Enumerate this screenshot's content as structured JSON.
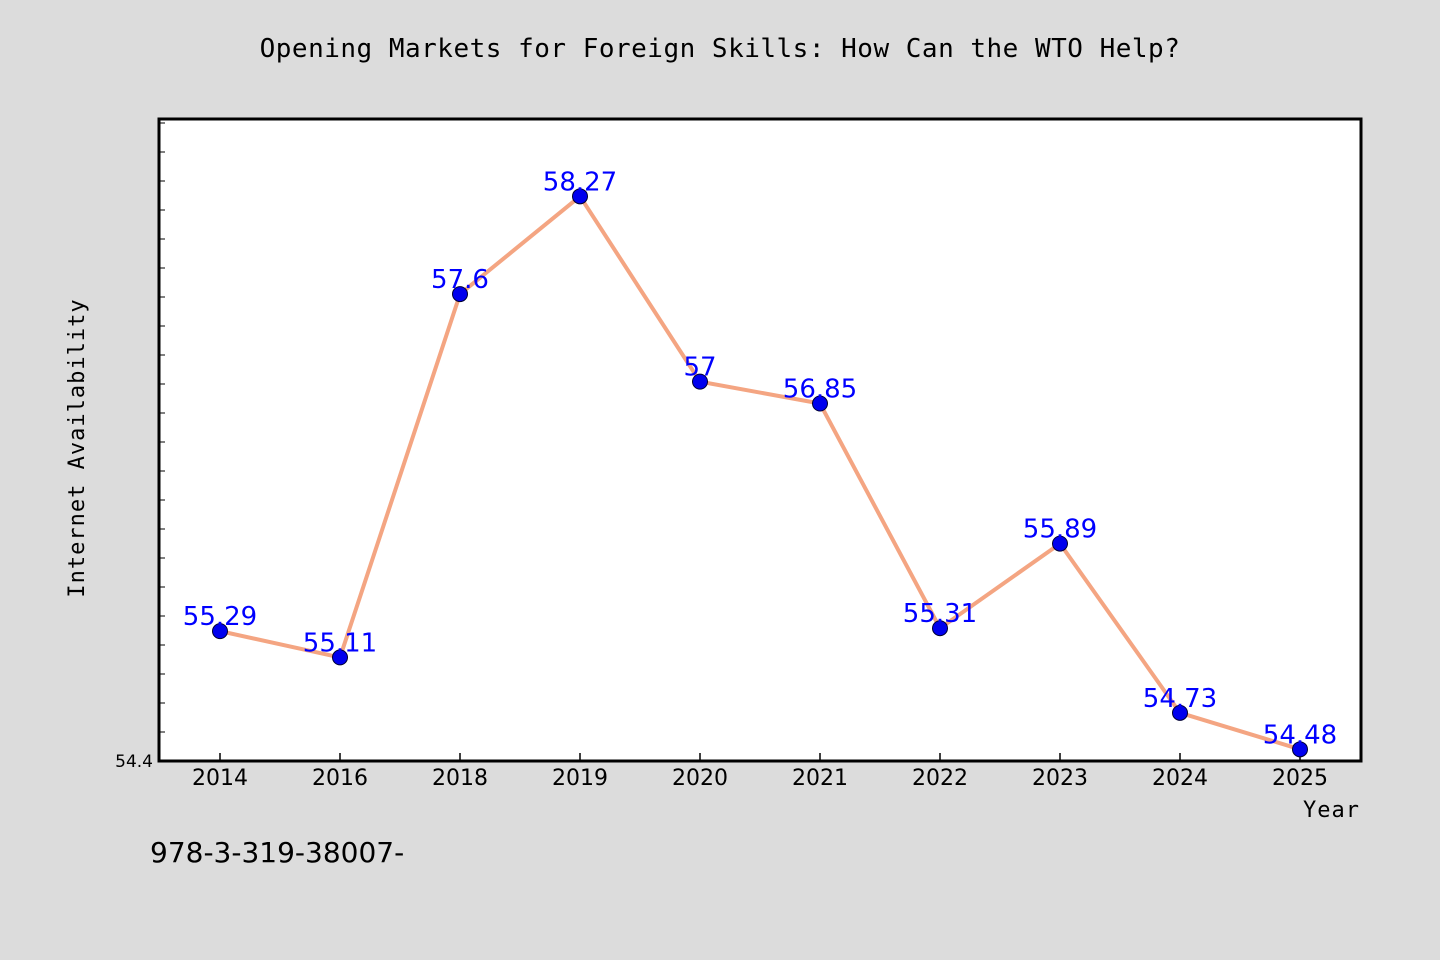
{
  "title": "Opening Markets for Foreign Skills: How Can the WTO Help?",
  "footer": "978-3-319-38007-",
  "colors": {
    "background": "#dcdcdc",
    "plot_background": "#ffffff",
    "line": "#f4a582",
    "marker": "#0000ee",
    "label": "#0000ff"
  },
  "chart_data": {
    "type": "line",
    "x": [
      "2014",
      "2016",
      "2018",
      "2019",
      "2020",
      "2021",
      "2022",
      "2023",
      "2024",
      "2025"
    ],
    "values": [
      55.29,
      55.11,
      57.6,
      58.27,
      57,
      56.85,
      55.31,
      55.89,
      54.73,
      54.48
    ],
    "data_labels": [
      "55.29",
      "55.11",
      "57.6",
      "58.27",
      "57",
      "56.85",
      "55.31",
      "55.89",
      "54.73",
      "54.48"
    ],
    "xlabel": "Year",
    "ylabel": "Internet Availability",
    "ylim": [
      54.4,
      58.8
    ],
    "ytick_labels": [
      "54.4"
    ],
    "grid": false,
    "legend": "none"
  }
}
